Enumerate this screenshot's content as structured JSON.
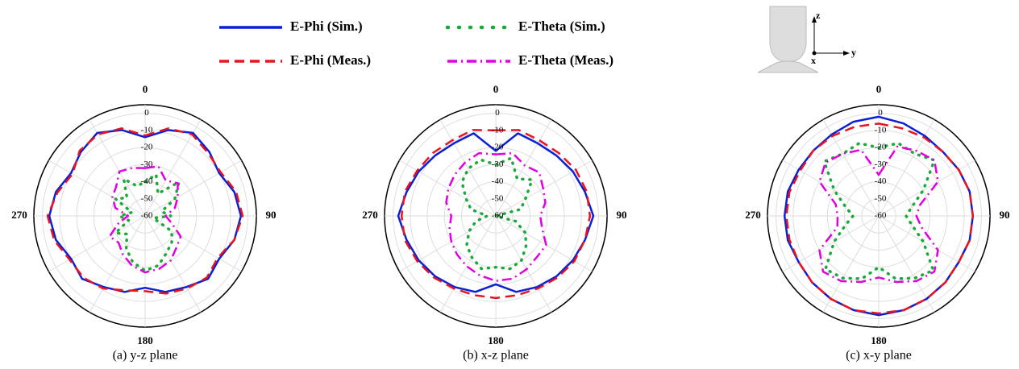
{
  "chart_data": [
    {
      "type": "polar",
      "title": "(a) y-z plane",
      "x": [
        0,
        15,
        30,
        45,
        60,
        75,
        90,
        105,
        120,
        135,
        150,
        165,
        180,
        195,
        210,
        225,
        240,
        255,
        270,
        285,
        300,
        315,
        330,
        345
      ],
      "rlim": [
        -60,
        5
      ],
      "rticks": [
        0,
        -10,
        -20,
        -30,
        -40,
        -50,
        -60
      ],
      "thetaticks": [
        0,
        90,
        180,
        270
      ],
      "thetagrid_step": 30,
      "series": [
        {
          "name": "E-Phi (Sim.)",
          "color": "#0a1fd6",
          "style": "solid",
          "values": [
            -14,
            -8,
            -4,
            -7,
            -10,
            -6,
            -4,
            -6,
            -10,
            -8,
            -12,
            -14,
            -18,
            -14,
            -12,
            -8,
            -10,
            -6,
            -4,
            -6,
            -10,
            -7,
            -4,
            -8
          ]
        },
        {
          "name": "E-Phi (Meas.)",
          "color": "#e8141e",
          "style": "dashed",
          "values": [
            -13,
            -7,
            -5,
            -8,
            -9,
            -5,
            -3,
            -6,
            -11,
            -9,
            -11,
            -13,
            -16,
            -15,
            -11,
            -9,
            -9,
            -5,
            -3,
            -7,
            -11,
            -6,
            -5,
            -7
          ]
        },
        {
          "name": "E-Theta (Sim.)",
          "color": "#1aaa3a",
          "style": "dotted",
          "values": [
            -40,
            -35,
            -45,
            -32,
            -40,
            -50,
            -45,
            -55,
            -42,
            -38,
            -35,
            -30,
            -28,
            -32,
            -38,
            -45,
            -40,
            -50,
            -45,
            -52,
            -40,
            -45,
            -35,
            -42
          ]
        },
        {
          "name": "E-Theta (Meas.)",
          "color": "#e000e0",
          "style": "dashdot",
          "values": [
            -32,
            -30,
            -36,
            -33,
            -38,
            -42,
            -48,
            -44,
            -36,
            -34,
            -30,
            -28,
            -27,
            -30,
            -34,
            -38,
            -36,
            -44,
            -50,
            -42,
            -38,
            -36,
            -30,
            -31
          ]
        }
      ]
    },
    {
      "type": "polar",
      "title": "(b) x-z plane",
      "x": [
        0,
        15,
        30,
        45,
        60,
        75,
        90,
        105,
        120,
        135,
        150,
        165,
        180,
        195,
        210,
        225,
        240,
        255,
        270,
        285,
        300,
        315,
        330,
        345
      ],
      "rlim": [
        -60,
        5
      ],
      "rticks": [
        0,
        -10,
        -20,
        -30,
        -40,
        -50,
        -60
      ],
      "thetaticks": [
        0,
        90,
        180,
        270
      ],
      "thetagrid_step": 30,
      "series": [
        {
          "color": "#0a1fd6",
          "style": "solid",
          "values": [
            -22,
            -10,
            -11,
            -10,
            -8,
            -6,
            -3,
            -6,
            -8,
            -10,
            -12,
            -14,
            -20,
            -14,
            -12,
            -10,
            -8,
            -6,
            -3,
            -6,
            -8,
            -10,
            -11,
            -10
          ]
        },
        {
          "color": "#e8141e",
          "style": "dashed",
          "values": [
            -10,
            -8,
            -9,
            -8,
            -6,
            -5,
            -5,
            -6,
            -7,
            -9,
            -11,
            -12,
            -12,
            -12,
            -11,
            -9,
            -7,
            -5,
            -5,
            -5,
            -7,
            -8,
            -9,
            -8
          ]
        },
        {
          "color": "#1aaa3a",
          "style": "dotted",
          "values": [
            -30,
            -25,
            -35,
            -30,
            -40,
            -45,
            -60,
            -48,
            -40,
            -35,
            -30,
            -28,
            -30,
            -28,
            -32,
            -36,
            -42,
            -48,
            -55,
            -45,
            -40,
            -32,
            -28,
            -26
          ]
        },
        {
          "color": "#e000e0",
          "style": "dashdot",
          "values": [
            -24,
            -22,
            -26,
            -24,
            -28,
            -30,
            -34,
            -32,
            -26,
            -26,
            -24,
            -22,
            -22,
            -24,
            -26,
            -28,
            -30,
            -32,
            -34,
            -30,
            -28,
            -26,
            -24,
            -22
          ]
        }
      ]
    },
    {
      "type": "polar",
      "title": "(c) x-y plane",
      "x": [
        0,
        15,
        30,
        45,
        60,
        75,
        90,
        105,
        120,
        135,
        150,
        165,
        180,
        195,
        210,
        225,
        240,
        255,
        270,
        285,
        300,
        315,
        330,
        345
      ],
      "rlim": [
        -60,
        5
      ],
      "rticks": [
        0,
        -10,
        -20,
        -30,
        -40,
        -50,
        -60
      ],
      "thetaticks": [
        0,
        90,
        180,
        270
      ],
      "thetagrid_step": 30,
      "series": [
        {
          "color": "#0a1fd6",
          "style": "solid",
          "values": [
            -2,
            -4,
            -6,
            -7,
            -6,
            -5,
            -5,
            -5,
            -6,
            -5,
            -4,
            -3,
            -2,
            -3,
            -4,
            -5,
            -6,
            -5,
            -5,
            -5,
            -6,
            -6,
            -5,
            -3
          ]
        },
        {
          "color": "#e8141e",
          "style": "dashed",
          "values": [
            -6,
            -7,
            -7,
            -7,
            -6,
            -5,
            -5,
            -5,
            -6,
            -5,
            -4,
            -3,
            -3,
            -3,
            -4,
            -5,
            -6,
            -6,
            -6,
            -6,
            -7,
            -6,
            -6,
            -6
          ]
        },
        {
          "color": "#1aaa3a",
          "style": "dotted",
          "values": [
            -20,
            -16,
            -18,
            -14,
            -30,
            -40,
            -44,
            -40,
            -30,
            -15,
            -18,
            -22,
            -30,
            -22,
            -18,
            -16,
            -30,
            -40,
            -45,
            -40,
            -30,
            -15,
            -18,
            -16
          ]
        },
        {
          "color": "#e000e0",
          "style": "dashdot",
          "values": [
            -36,
            -18,
            -16,
            -14,
            -20,
            -35,
            -38,
            -34,
            -20,
            -14,
            -16,
            -20,
            -24,
            -20,
            -16,
            -14,
            -20,
            -35,
            -36,
            -34,
            -20,
            -16,
            -18,
            -20
          ]
        }
      ]
    }
  ],
  "inset": {
    "labels": [
      "z",
      "y",
      "x"
    ]
  }
}
